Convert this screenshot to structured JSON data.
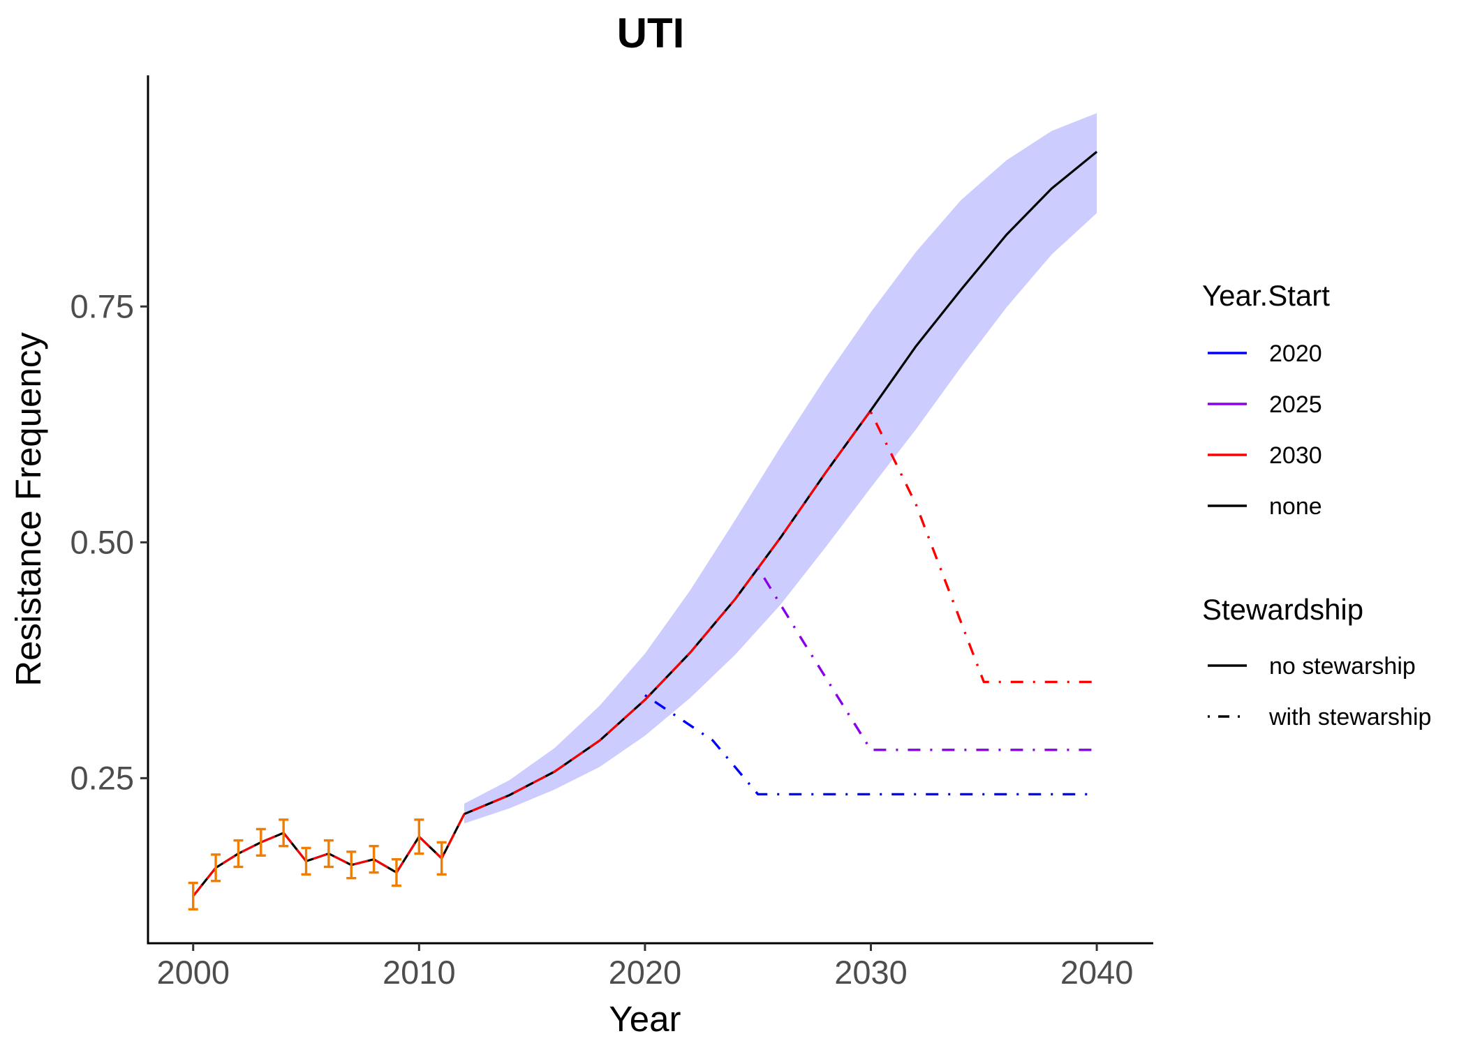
{
  "chart_data": {
    "type": "line",
    "title": "UTI",
    "xlabel": "Year",
    "ylabel": "Resistance Frequency",
    "xlim": [
      1998,
      2042.5
    ],
    "ylim": [
      0.075,
      0.995
    ],
    "x_ticks": [
      2000,
      2010,
      2020,
      2030,
      2040
    ],
    "x_tick_labels": [
      "2000",
      "2010",
      "2020",
      "2030",
      "2040"
    ],
    "y_ticks": [
      0.25,
      0.5,
      0.75
    ],
    "y_tick_labels": [
      "0.25",
      "0.50",
      "0.75"
    ],
    "grid": false,
    "legend_position": "right",
    "legends": [
      {
        "title": "Year.Start",
        "entries": [
          {
            "label": "2020",
            "color": "#0000ff",
            "dash": "solid"
          },
          {
            "label": "2025",
            "color": "#8a00e6",
            "dash": "solid"
          },
          {
            "label": "2030",
            "color": "#ff0000",
            "dash": "solid"
          },
          {
            "label": "none",
            "color": "#000000",
            "dash": "solid"
          }
        ]
      },
      {
        "title": "Stewardship",
        "entries": [
          {
            "label": "no stewarship",
            "color": "#000000",
            "dash": "solid"
          },
          {
            "label": "with stewarship",
            "color": "#000000",
            "dash": "dotdash"
          }
        ]
      }
    ],
    "observed": {
      "color": "#f07c00",
      "x": [
        2000,
        2001,
        2002,
        2003,
        2004,
        2005,
        2006,
        2007,
        2008,
        2009,
        2010,
        2011
      ],
      "y": [
        0.125,
        0.155,
        0.17,
        0.182,
        0.192,
        0.162,
        0.17,
        0.158,
        0.164,
        0.15,
        0.188,
        0.165
      ],
      "error": [
        0.014,
        0.014,
        0.014,
        0.014,
        0.014,
        0.014,
        0.014,
        0.014,
        0.014,
        0.014,
        0.018,
        0.017
      ]
    },
    "historical_line": {
      "x": [
        2000,
        2001,
        2002,
        2003,
        2004,
        2005,
        2006,
        2007,
        2008,
        2009,
        2010,
        2011,
        2012
      ],
      "y": [
        0.125,
        0.155,
        0.17,
        0.182,
        0.192,
        0.162,
        0.17,
        0.158,
        0.164,
        0.15,
        0.188,
        0.165,
        0.212
      ]
    },
    "projection_band": {
      "color": "#ccccff",
      "x": [
        2012,
        2014,
        2016,
        2018,
        2020,
        2022,
        2024,
        2026,
        2028,
        2030,
        2032,
        2034,
        2036,
        2038,
        2040
      ],
      "lower": [
        0.202,
        0.218,
        0.238,
        0.262,
        0.295,
        0.335,
        0.381,
        0.434,
        0.495,
        0.558,
        0.62,
        0.686,
        0.749,
        0.805,
        0.849
      ],
      "upper": [
        0.223,
        0.248,
        0.282,
        0.327,
        0.382,
        0.449,
        0.524,
        0.601,
        0.675,
        0.744,
        0.808,
        0.863,
        0.905,
        0.936,
        0.955
      ]
    },
    "series": [
      {
        "name": "none",
        "color": "#000000",
        "dash": "solid",
        "x": [
          2012,
          2014,
          2016,
          2018,
          2020,
          2022,
          2024,
          2026,
          2028,
          2030,
          2032,
          2034,
          2036,
          2038,
          2040
        ],
        "y": [
          0.212,
          0.232,
          0.257,
          0.29,
          0.333,
          0.383,
          0.44,
          0.505,
          0.574,
          0.64,
          0.708,
          0.768,
          0.826,
          0.875,
          0.914
        ]
      },
      {
        "name": "2020",
        "color": "#0000ff",
        "dash": "dotdash",
        "x": [
          2020,
          2023,
          2025,
          2030,
          2035,
          2040
        ],
        "y": [
          0.338,
          0.29,
          0.233,
          0.233,
          0.233,
          0.233
        ]
      },
      {
        "name": "2025",
        "color": "#8a00e6",
        "dash": "dotdash",
        "x": [
          2025,
          2027,
          2030,
          2035,
          2040
        ],
        "y": [
          0.473,
          0.395,
          0.28,
          0.28,
          0.28
        ]
      },
      {
        "name": "2030",
        "color": "#ff0000",
        "dash": "dotdash",
        "x": [
          2030,
          2032,
          2035,
          2040
        ],
        "y": [
          0.638,
          0.54,
          0.352,
          0.352
        ]
      }
    ],
    "trace_overlay": {
      "color": "#ff0000",
      "dash": "longdash",
      "x": [
        2000,
        2001,
        2002,
        2003,
        2004,
        2005,
        2006,
        2007,
        2008,
        2009,
        2010,
        2011,
        2012,
        2014,
        2016,
        2018,
        2020,
        2022,
        2024,
        2026,
        2028,
        2030
      ],
      "y": [
        0.125,
        0.155,
        0.17,
        0.182,
        0.192,
        0.162,
        0.17,
        0.158,
        0.164,
        0.15,
        0.188,
        0.165,
        0.212,
        0.232,
        0.257,
        0.29,
        0.333,
        0.383,
        0.44,
        0.505,
        0.574,
        0.64
      ]
    }
  }
}
